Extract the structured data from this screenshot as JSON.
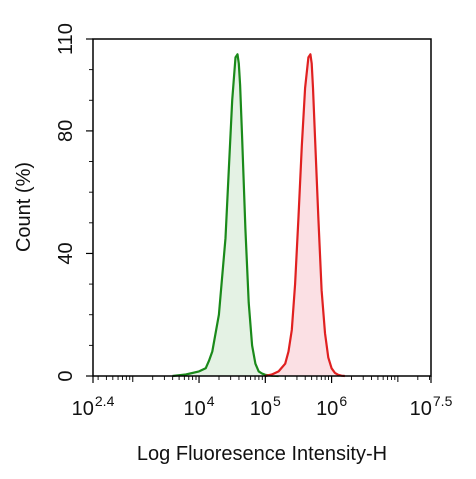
{
  "chart_data": {
    "type": "area",
    "xlabel": "Log Fluoresence Intensity-H",
    "ylabel": "Count  (%)",
    "x_scale": "log10",
    "xlim_log10": [
      2.4,
      7.5
    ],
    "ylim": [
      0,
      110
    ],
    "x_ticks": [
      {
        "base": "10",
        "exp": "2.4",
        "log10": 2.4
      },
      {
        "base": "10",
        "exp": "4",
        "log10": 4
      },
      {
        "base": "10",
        "exp": "5",
        "log10": 5
      },
      {
        "base": "10",
        "exp": "6",
        "log10": 6
      },
      {
        "base": "10",
        "exp": "7.5",
        "log10": 7.5
      }
    ],
    "y_ticks": [
      0,
      40,
      80,
      110
    ],
    "grid": false,
    "legend": "none",
    "series": [
      {
        "color": "#1a8a1a",
        "fill": "#e4f2e4",
        "x_log10": [
          3.6,
          3.8,
          4.0,
          4.1,
          4.15,
          4.2,
          4.3,
          4.4,
          4.45,
          4.5,
          4.55,
          4.58,
          4.6,
          4.62,
          4.65,
          4.7,
          4.75,
          4.8,
          4.85,
          4.9,
          4.95,
          5.0,
          5.1,
          5.2
        ],
        "y": [
          0,
          0.5,
          1.5,
          2.5,
          5,
          8,
          20,
          45,
          68,
          90,
          104,
          105,
          102,
          95,
          78,
          48,
          24,
          10,
          4,
          1.5,
          0.8,
          0.4,
          0.1,
          0
        ]
      },
      {
        "color": "#e02020",
        "fill": "#fbe0e4",
        "x_log10": [
          5.0,
          5.1,
          5.2,
          5.3,
          5.35,
          5.4,
          5.45,
          5.5,
          5.55,
          5.6,
          5.65,
          5.68,
          5.7,
          5.72,
          5.75,
          5.8,
          5.85,
          5.9,
          5.95,
          6.0,
          6.05,
          6.1,
          6.15,
          6.2
        ],
        "y": [
          0,
          0.5,
          1.5,
          4,
          8,
          15,
          30,
          52,
          75,
          94,
          104,
          105,
          102,
          94,
          78,
          52,
          28,
          14,
          6,
          2.5,
          1,
          0.4,
          0.1,
          0
        ]
      }
    ]
  }
}
